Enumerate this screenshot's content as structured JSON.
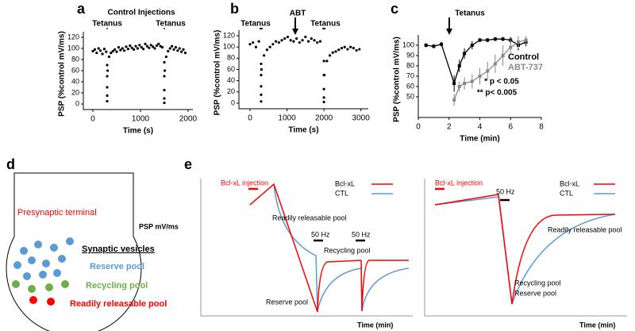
{
  "chart_data": [
    {
      "type": "scatter",
      "label": "a",
      "annotations": [
        "Control Injections",
        "Tetanus",
        "Tetanus"
      ],
      "xlabel": "Time (s)",
      "ylabel": "PSP (%control mV/ms)",
      "color": "#000000",
      "x": [
        0,
        40,
        80,
        120,
        160,
        200,
        240,
        280,
        300,
        300,
        300,
        300,
        300,
        310,
        340,
        380,
        420,
        460,
        500,
        540,
        580,
        620,
        660,
        700,
        740,
        780,
        820,
        860,
        900,
        940,
        980,
        1020,
        1060,
        1100,
        1140,
        1180,
        1220,
        1260,
        1300,
        1340,
        1380,
        1420,
        1460,
        1500,
        1500,
        1500,
        1500,
        1500,
        1510,
        1540,
        1580,
        1620,
        1660,
        1700,
        1740,
        1780,
        1820,
        1860,
        1900,
        1940
      ],
      "values": [
        95,
        98,
        92,
        100,
        96,
        90,
        99,
        94,
        70,
        50,
        30,
        15,
        5,
        60,
        85,
        92,
        95,
        98,
        94,
        102,
        97,
        100,
        96,
        103,
        99,
        105,
        101,
        98,
        104,
        100,
        106,
        102,
        99,
        108,
        104,
        101,
        106,
        103,
        100,
        105,
        108,
        104,
        102,
        75,
        50,
        25,
        10,
        2,
        60,
        85,
        95,
        100,
        104,
        98,
        102,
        96,
        100,
        94,
        98,
        92
      ],
      "xlim": [
        -200,
        2100
      ],
      "xticks": [
        0,
        1000,
        2000
      ],
      "ylim": [
        -10,
        130
      ],
      "yticks": [
        0,
        20,
        40,
        60,
        80,
        100,
        120
      ]
    },
    {
      "type": "scatter",
      "label": "b",
      "annotations": [
        "Tetanus",
        "ABT",
        "Tetanus"
      ],
      "xlabel": "Time (s)",
      "ylabel": "PSP (%control mV/ms)",
      "color": "#000000",
      "x": [
        0,
        80,
        160,
        240,
        300,
        300,
        300,
        300,
        300,
        310,
        380,
        460,
        540,
        620,
        700,
        780,
        860,
        940,
        1020,
        1100,
        1180,
        1260,
        1340,
        1420,
        1500,
        1580,
        1660,
        1740,
        1820,
        1900,
        2000,
        2000,
        2000,
        2000,
        2000,
        2010,
        2080,
        2160,
        2240,
        2320,
        2400,
        2480,
        2560,
        2640,
        2720,
        2800,
        2880,
        2960
      ],
      "values": [
        105,
        108,
        100,
        110,
        70,
        50,
        30,
        15,
        3,
        60,
        85,
        95,
        100,
        105,
        110,
        108,
        112,
        115,
        118,
        112,
        110,
        115,
        108,
        112,
        118,
        110,
        115,
        112,
        108,
        110,
        75,
        50,
        25,
        10,
        2,
        50,
        75,
        85,
        90,
        92,
        95,
        98,
        100,
        96,
        100,
        98,
        94,
        96
      ],
      "xlim": [
        -300,
        3200
      ],
      "xticks": [
        0,
        1000,
        2000,
        3000
      ],
      "ylim": [
        -10,
        130
      ],
      "yticks": [
        0,
        20,
        40,
        60,
        80,
        100,
        120
      ]
    },
    {
      "type": "line",
      "label": "c",
      "annotations": [
        "Tetanus",
        "* p < 0.05",
        "** p< 0.005"
      ],
      "xlabel": "Time (min)",
      "ylabel": "PSP (%control mV/ms)",
      "series": [
        {
          "name": "Control",
          "color": "#000000",
          "x": [
            0.5,
            1,
            1.5,
            2.33,
            2.67,
            3,
            3.5,
            4,
            4.5,
            5,
            5.5,
            6,
            6.5,
            7
          ],
          "values": [
            100,
            99,
            101,
            63,
            80,
            92,
            100,
            105,
            105,
            106,
            106,
            105,
            100,
            103
          ],
          "errors": [
            2,
            2,
            2,
            8,
            6,
            5,
            4,
            2,
            2,
            2,
            2,
            3,
            5,
            4
          ]
        },
        {
          "name": "ABT-737",
          "color": "#888888",
          "x": [
            2.33,
            2.67,
            3,
            3.5,
            4,
            4.5,
            5,
            5.5,
            6,
            6.5,
            7
          ],
          "values": [
            47,
            60,
            63,
            65,
            70,
            75,
            82,
            90,
            98,
            103,
            105
          ],
          "errors": [
            6,
            5,
            6,
            7,
            8,
            9,
            9,
            10,
            8,
            6,
            4
          ]
        }
      ],
      "xlim": [
        0,
        8
      ],
      "xticks": [
        0,
        2,
        4,
        6,
        8
      ],
      "ylim": [
        30,
        110
      ],
      "yticks": [
        50,
        60,
        70,
        80,
        90,
        100
      ]
    }
  ],
  "diagram_d": {
    "label": "d",
    "terminal": "Presynaptic terminal",
    "vesicles": "Synaptic vesicles",
    "reserve": "Reserve pool",
    "recycling": "Recycling pool",
    "readily": "Readily releasable pool"
  },
  "schematic_e": {
    "label": "e",
    "ylabel": "PSP mV/ms",
    "left": {
      "injection": "Bcl-xL injection",
      "legend": [
        "Bcl-xL",
        "CTL"
      ],
      "readily": "Readily releasable pool",
      "hz1": "50 Hz",
      "hz2": "50 Hz",
      "recycling": "Recycling pool",
      "reserve": "Reserve pool",
      "xlabel": "Time (min)"
    },
    "right": {
      "injection": "Bcl-xL injection",
      "hz": "50 Hz",
      "legend": [
        "Bcl-xL",
        "CTL"
      ],
      "readily": "Readily releasable pool",
      "recycling": "Recycling pool",
      "reserve": "Reserve pool",
      "xlabel": "Time (min)"
    }
  }
}
